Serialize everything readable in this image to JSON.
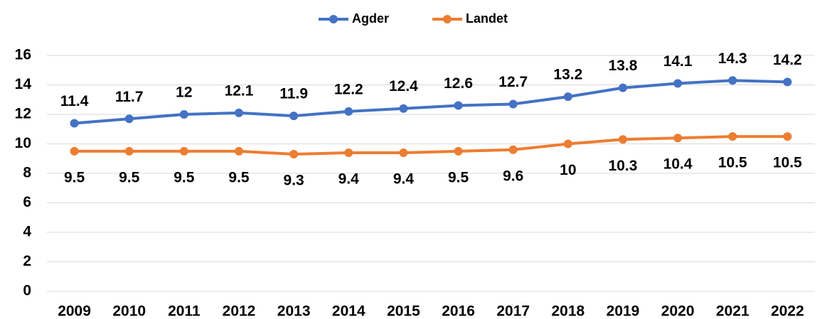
{
  "chart_data": {
    "type": "line",
    "categories": [
      "2009",
      "2010",
      "2011",
      "2012",
      "2013",
      "2014",
      "2015",
      "2016",
      "2017",
      "2018",
      "2019",
      "2020",
      "2021",
      "2022"
    ],
    "series": [
      {
        "name": "Agder",
        "color": "#4472c4",
        "values": [
          11.4,
          11.7,
          12,
          12.1,
          11.9,
          12.2,
          12.4,
          12.6,
          12.7,
          13.2,
          13.8,
          14.1,
          14.3,
          14.2
        ]
      },
      {
        "name": "Landet",
        "color": "#ed7d31",
        "values": [
          9.5,
          9.5,
          9.5,
          9.5,
          9.3,
          9.4,
          9.4,
          9.5,
          9.6,
          10,
          10.3,
          10.4,
          10.5,
          10.5
        ]
      }
    ],
    "ylim": [
      0,
      16
    ],
    "yticks": [
      0,
      2,
      4,
      6,
      8,
      10,
      12,
      14,
      16
    ],
    "grid": true,
    "legend": "top"
  }
}
